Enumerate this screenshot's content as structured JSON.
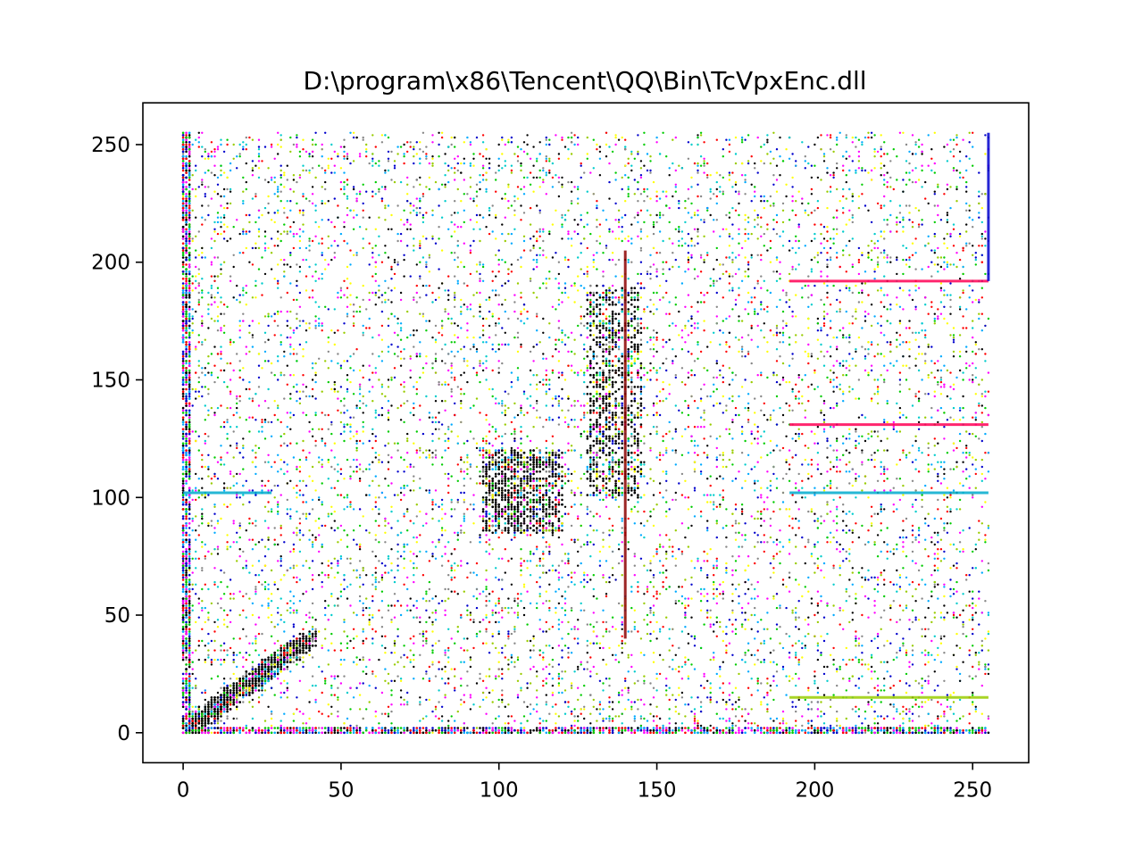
{
  "chart_data": {
    "type": "scatter",
    "title": "D:\\program\\x86\\Tencent\\QQ\\Bin\\TcVpxEnc.dll",
    "xlabel": "",
    "ylabel": "",
    "xlim": [
      -12.75,
      267.75
    ],
    "ylim": [
      -12.75,
      267.75
    ],
    "x_ticks": [
      0,
      50,
      100,
      150,
      200,
      250
    ],
    "y_ticks": [
      0,
      50,
      100,
      150,
      200,
      250
    ],
    "x_tick_labels": [
      "0",
      "50",
      "100",
      "150",
      "200",
      "250"
    ],
    "y_tick_labels": [
      "0",
      "50",
      "100",
      "150",
      "200",
      "250"
    ],
    "grid": false,
    "legend": "none",
    "point_colors": [
      "#000000",
      "#ff00ff",
      "#00aaff",
      "#00cc00",
      "#ff0000",
      "#0000cc",
      "#ffff00",
      "#00cccc",
      "#888888",
      "#99cc00"
    ],
    "highlighted_lines": [
      {
        "orientation": "horizontal",
        "y": 102,
        "x_from": 192,
        "x_to": 255,
        "color": "#00aacc"
      },
      {
        "orientation": "horizontal",
        "y": 15,
        "x_from": 192,
        "x_to": 255,
        "color": "#99cc00"
      },
      {
        "orientation": "horizontal",
        "y": 131,
        "x_from": 192,
        "x_to": 255,
        "color": "#ff0055"
      },
      {
        "orientation": "horizontal",
        "y": 192,
        "x_from": 192,
        "x_to": 255,
        "color": "#ff0055"
      },
      {
        "orientation": "horizontal",
        "y": 102,
        "x_from": 0,
        "x_to": 28,
        "color": "#00aacc"
      },
      {
        "orientation": "vertical",
        "x": 255,
        "y_from": 192,
        "y_to": 255,
        "color": "#0000cc"
      },
      {
        "orientation": "vertical",
        "x": 140,
        "y_from": 40,
        "y_to": 205,
        "color": "#8b0000"
      }
    ],
    "dense_regions": [
      {
        "label": "diagonal",
        "x_from": 0,
        "x_to": 40,
        "y_from": 0,
        "y_to": 40
      },
      {
        "label": "cluster",
        "x_from": 95,
        "x_to": 120,
        "y_from": 85,
        "y_to": 120
      },
      {
        "label": "band",
        "x_from": 128,
        "x_to": 145,
        "y_from": 100,
        "y_to": 190
      }
    ]
  }
}
